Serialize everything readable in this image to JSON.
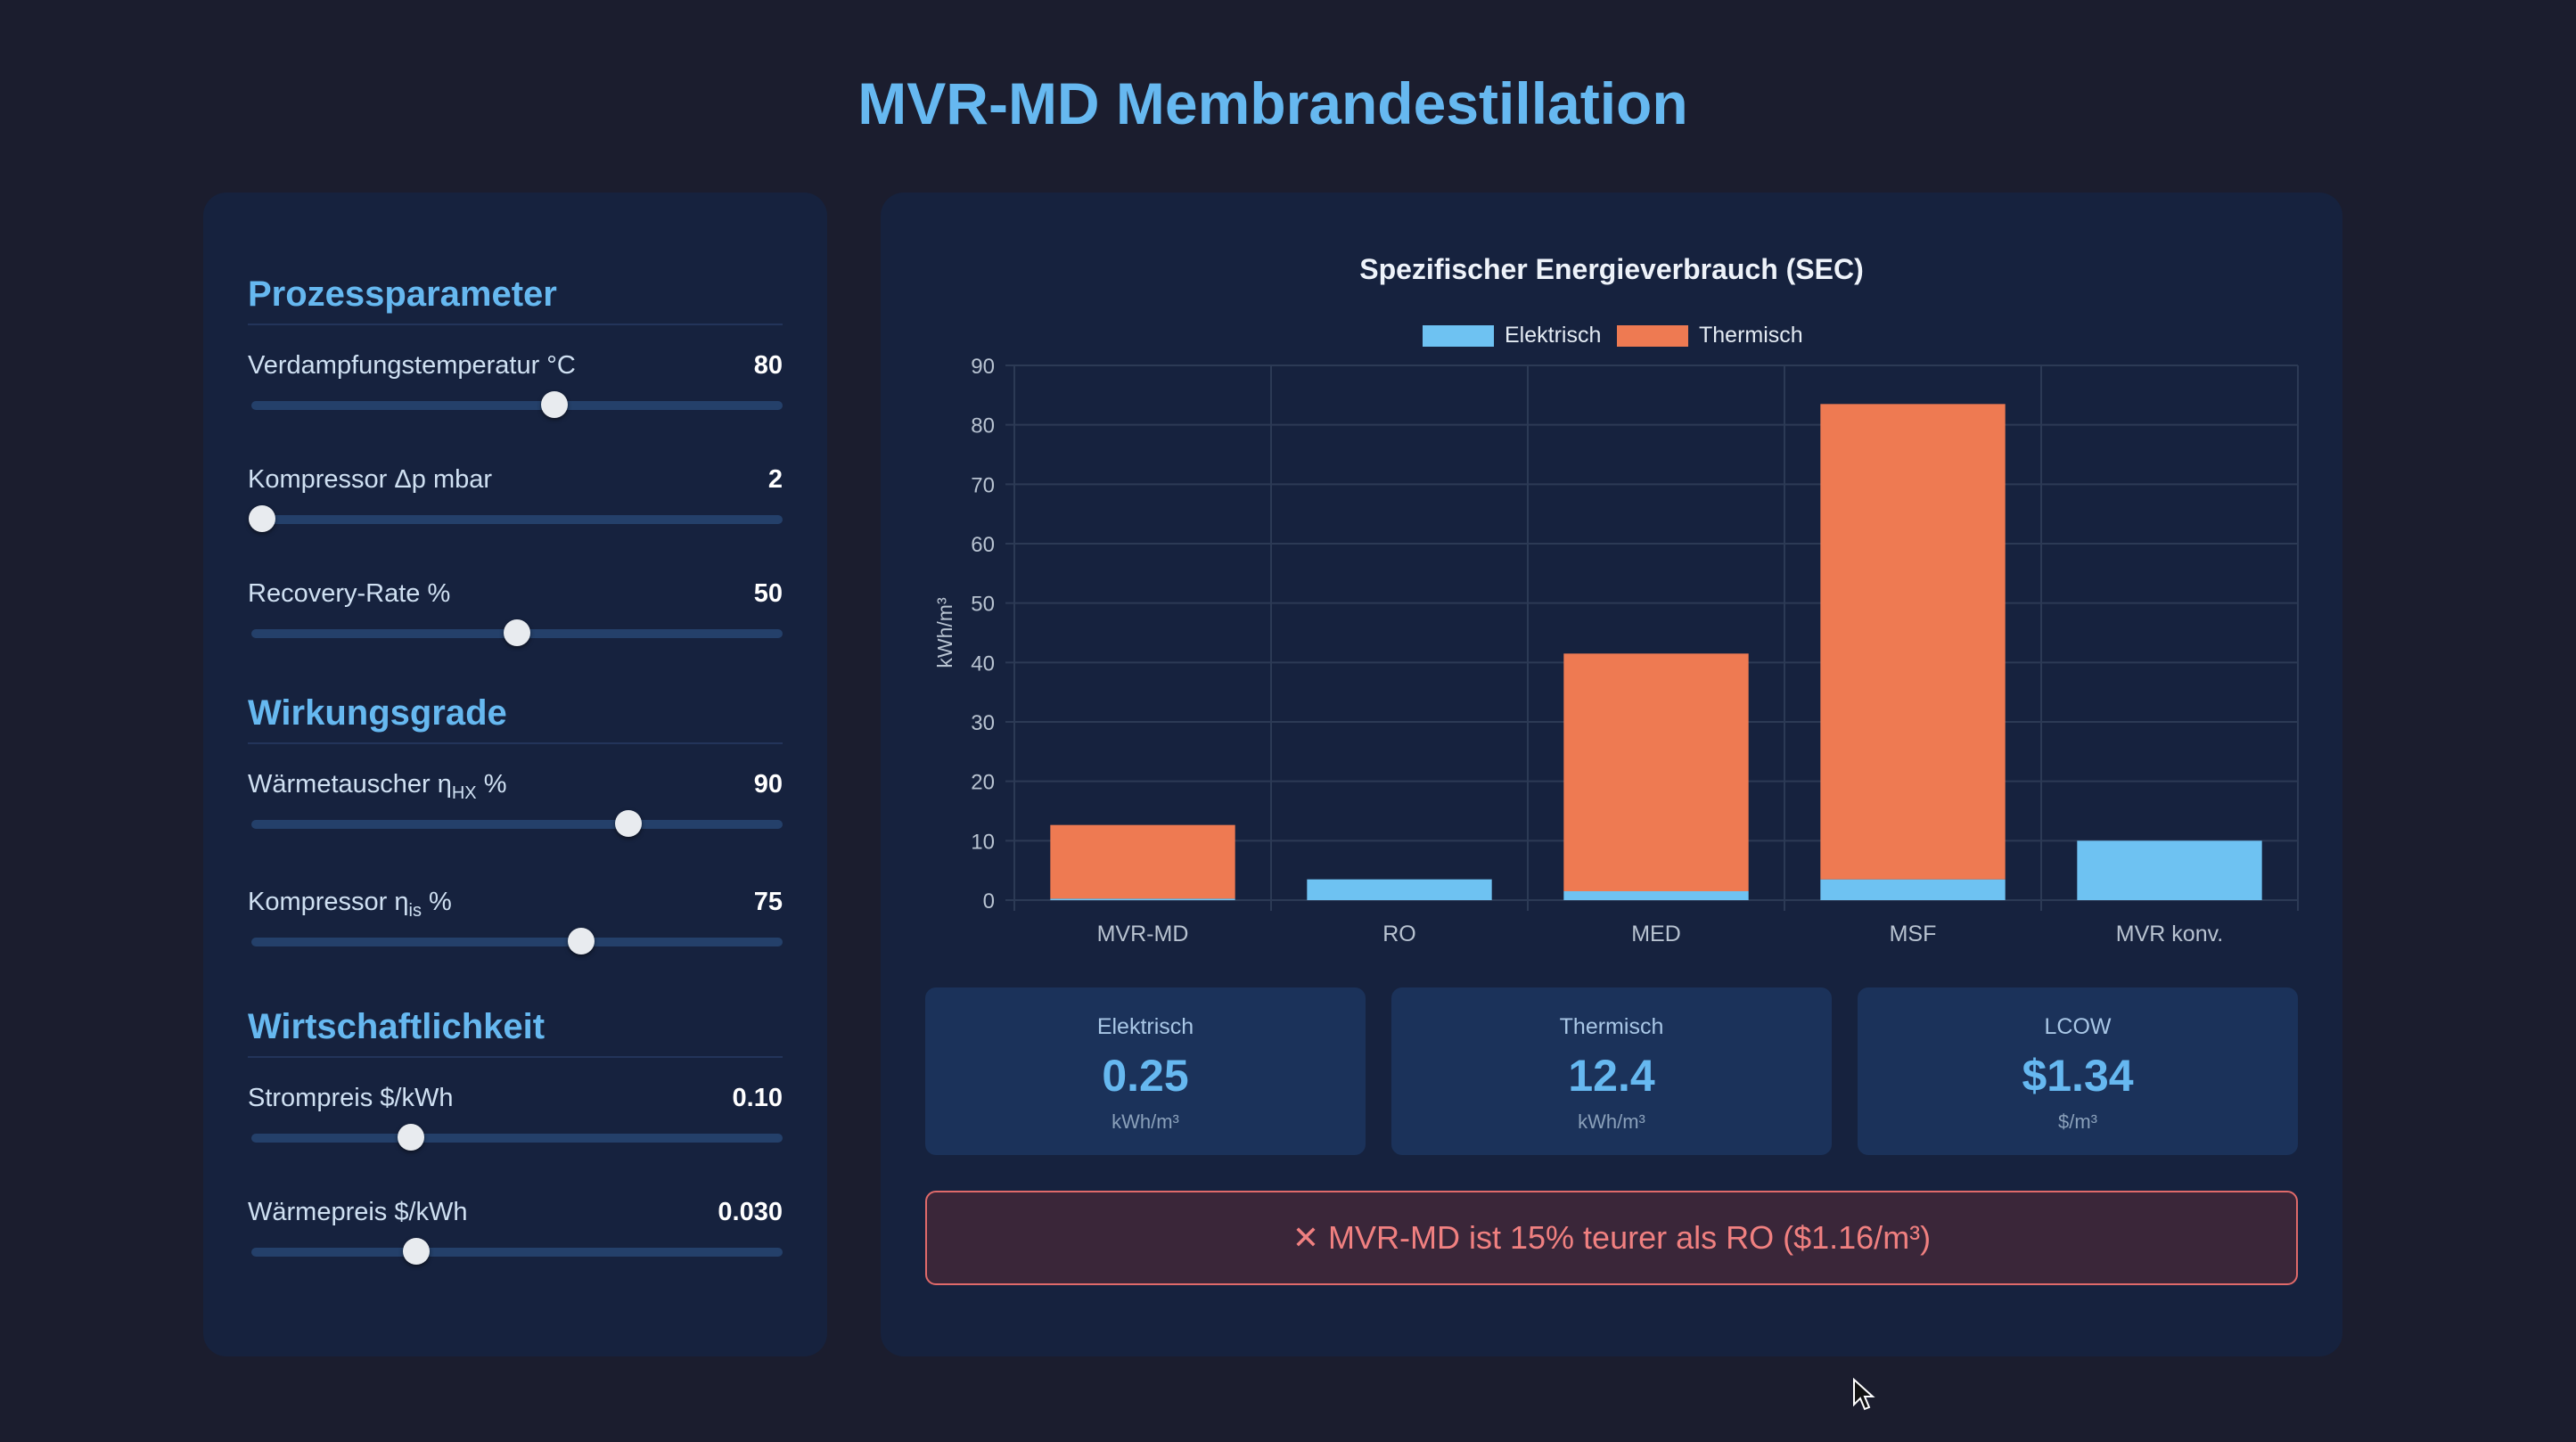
{
  "page": {
    "title": "MVR-MD Membrandestillation"
  },
  "controls": {
    "sections": [
      {
        "title": "Prozessparameter",
        "params": [
          {
            "label": "Verdampfungstemperatur °C",
            "value": "80",
            "fraction": 0.57
          },
          {
            "label": "Kompressor Δp mbar",
            "value": "2",
            "fraction": 0.02
          },
          {
            "label": "Recovery-Rate %",
            "value": "50",
            "fraction": 0.5
          }
        ]
      },
      {
        "title": "Wirkungsgrade",
        "params": [
          {
            "label": "Wärmetauscher η",
            "sub": "HX",
            "suffix": " %",
            "value": "90",
            "fraction": 0.71
          },
          {
            "label": "Kompressor η",
            "sub": "is",
            "suffix": " %",
            "value": "75",
            "fraction": 0.62
          }
        ]
      },
      {
        "title": "Wirtschaftlichkeit",
        "params": [
          {
            "label": "Strompreis $/kWh",
            "value": "0.10",
            "fraction": 0.3
          },
          {
            "label": "Wärmepreis $/kWh",
            "value": "0.030",
            "fraction": 0.31
          }
        ]
      }
    ]
  },
  "chart_data": {
    "type": "bar",
    "stacked": true,
    "title": "Spezifischer Energieverbrauch (SEC)",
    "ylabel": "kWh/m³",
    "xlabel": "",
    "ylim": [
      0,
      90
    ],
    "yticks": [
      0,
      10,
      20,
      30,
      40,
      50,
      60,
      70,
      80,
      90
    ],
    "grid": true,
    "legend_position": "top-center",
    "categories": [
      "MVR-MD",
      "RO",
      "MED",
      "MSF",
      "MVR konv."
    ],
    "series": [
      {
        "name": "Elektrisch",
        "color": "#6ec2f2",
        "values": [
          0.25,
          3.5,
          1.5,
          3.5,
          10
        ]
      },
      {
        "name": "Thermisch",
        "color": "#ee7a52",
        "values": [
          12.4,
          0,
          40,
          80,
          0
        ]
      }
    ]
  },
  "stats": [
    {
      "label": "Elektrisch",
      "value": "0.25",
      "unit": "kWh/m³"
    },
    {
      "label": "Thermisch",
      "value": "12.4",
      "unit": "kWh/m³"
    },
    {
      "label": "LCOW",
      "value": "$1.34",
      "unit": "$/m³"
    }
  ],
  "alert": {
    "text": "✕ MVR-MD ist 15% teurer als RO ($1.16/m³)"
  }
}
